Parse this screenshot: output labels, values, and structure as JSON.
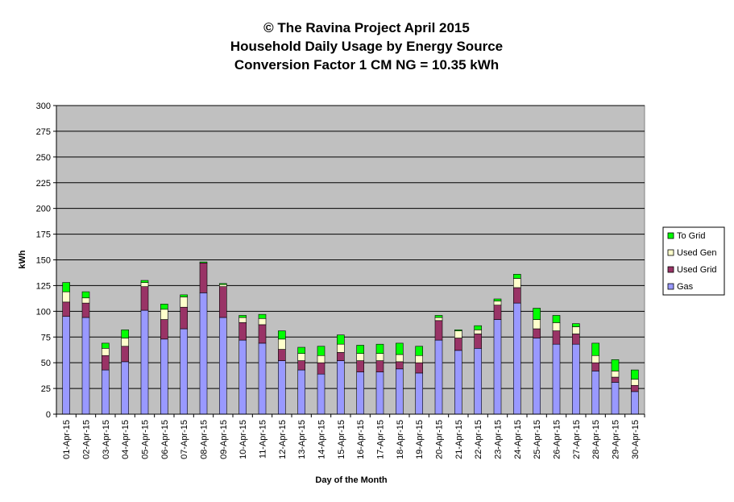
{
  "chart_data": {
    "type": "bar",
    "stacked": true,
    "title_lines": [
      "© The Ravina Project April 2015",
      "Household Daily Usage by Energy Source",
      "Conversion Factor 1 CM NG = 10.35 kWh"
    ],
    "xlabel": "Day of the Month",
    "ylabel": "kWh",
    "ylim": [
      0,
      300
    ],
    "yticks": [
      0,
      25,
      50,
      75,
      100,
      125,
      150,
      175,
      200,
      225,
      250,
      275,
      300
    ],
    "grid": true,
    "legend_position": "right",
    "categories": [
      "01-Apr-15",
      "02-Apr-15",
      "03-Apr-15",
      "04-Apr-15",
      "05-Apr-15",
      "06-Apr-15",
      "07-Apr-15",
      "08-Apr-15",
      "09-Apr-15",
      "10-Apr-15",
      "11-Apr-15",
      "12-Apr-15",
      "13-Apr-15",
      "14-Apr-15",
      "15-Apr-15",
      "16-Apr-15",
      "17-Apr-15",
      "18-Apr-15",
      "19-Apr-15",
      "20-Apr-15",
      "21-Apr-15",
      "22-Apr-15",
      "23-Apr-15",
      "24-Apr-15",
      "25-Apr-15",
      "26-Apr-15",
      "27-Apr-15",
      "28-Apr-15",
      "29-Apr-15",
      "30-Apr-15"
    ],
    "series": [
      {
        "name": "Gas",
        "color": "#9999ff",
        "values": [
          95,
          94,
          43,
          51,
          101,
          73,
          83,
          118,
          94,
          72,
          69,
          52,
          43,
          39,
          52,
          41,
          41,
          44,
          40,
          72,
          62,
          64,
          92,
          108,
          74,
          68,
          68,
          42,
          31,
          22
        ]
      },
      {
        "name": "Used Grid",
        "color": "#993366",
        "values": [
          14,
          14,
          14,
          15,
          23,
          19,
          21,
          29,
          30,
          17,
          18,
          11,
          9,
          11,
          8,
          11,
          11,
          7,
          10,
          19,
          12,
          14,
          14,
          15,
          9,
          13,
          10,
          8,
          5,
          6
        ]
      },
      {
        "name": "Used Gen",
        "color": "#ffffcc",
        "values": [
          10,
          5,
          7,
          8,
          4,
          10,
          10,
          0,
          2,
          5,
          6,
          10,
          7,
          7,
          8,
          7,
          7,
          7,
          7,
          3,
          7,
          4,
          4,
          9,
          9,
          8,
          7,
          7,
          6,
          6
        ]
      },
      {
        "name": "To Grid",
        "color": "#00ff00",
        "values": [
          9,
          6,
          5,
          8,
          2,
          5,
          2,
          1,
          1,
          2,
          4,
          8,
          6,
          9,
          9,
          8,
          9,
          11,
          9,
          2,
          1,
          4,
          2,
          4,
          11,
          7,
          3,
          12,
          11,
          9
        ]
      }
    ],
    "plot_background": "#c0c0c0"
  }
}
